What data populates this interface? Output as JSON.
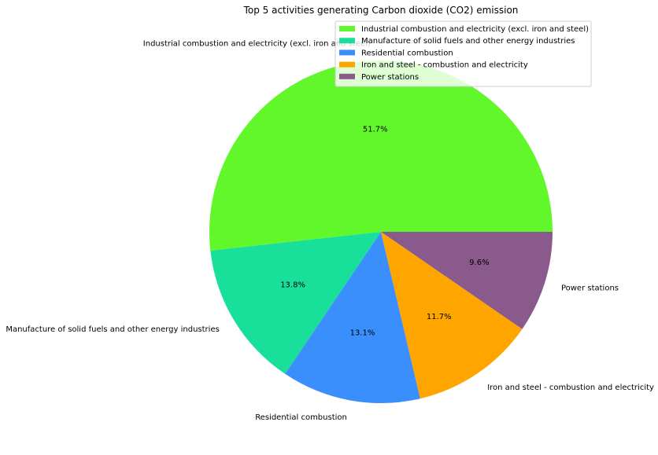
{
  "chart_data": {
    "type": "pie",
    "title": "Top 5 activities generating Carbon dioxide (CO2) emission",
    "labels": [
      "Industrial combustion and electricity (excl. iron and steel)",
      "Manufacture of solid fuels and other energy industries",
      "Residential combustion",
      "Iron and steel - combustion and electricity",
      "Power stations"
    ],
    "values": [
      51.7,
      13.8,
      13.1,
      11.7,
      9.6
    ],
    "percent_labels": [
      "51.7%",
      "13.8%",
      "13.1%",
      "11.7%",
      "9.6%"
    ],
    "colors": [
      "#62f72a",
      "#18e09b",
      "#3a8ffd",
      "#ffa500",
      "#8b5a8c"
    ],
    "start_angle": 0,
    "direction": "counterclockwise",
    "legend_placement": "top-right"
  }
}
